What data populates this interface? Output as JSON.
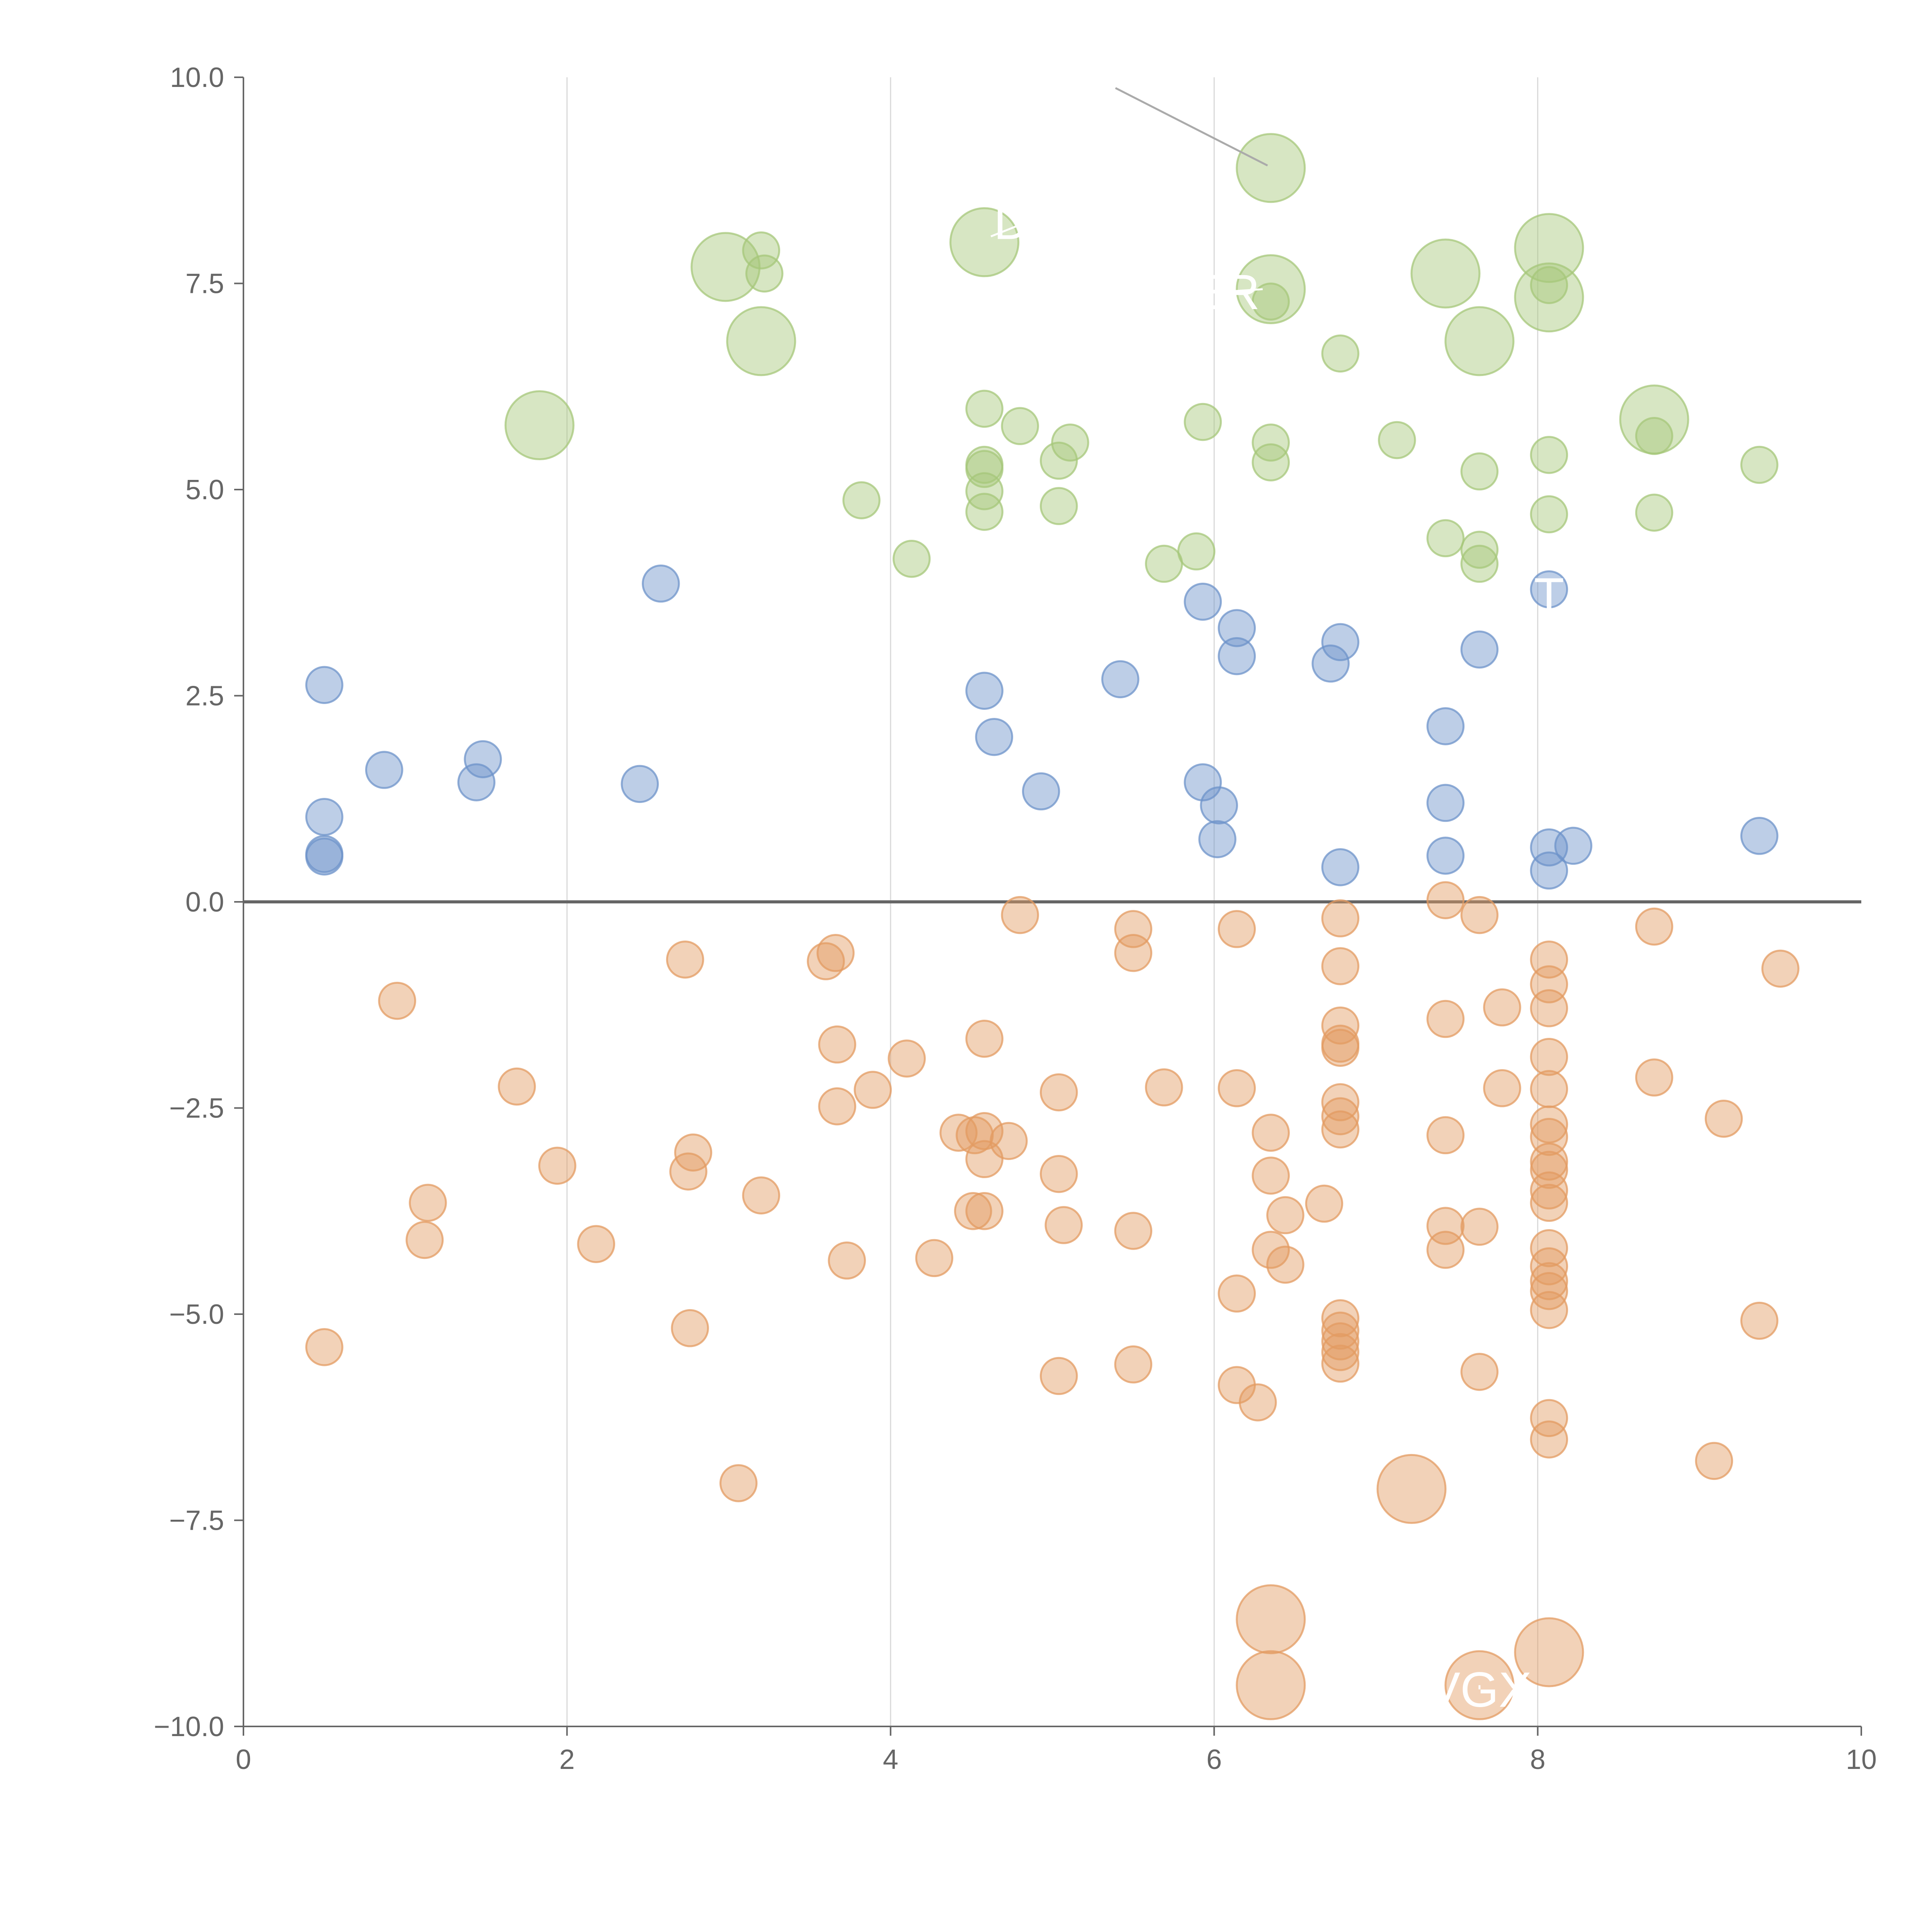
{
  "chart_data": {
    "type": "scatter",
    "title": "",
    "xlabel": "",
    "ylabel": "",
    "xlim": [
      0,
      10
    ],
    "ylim": [
      -10,
      10
    ],
    "x_ticks": [
      0,
      2,
      4,
      6,
      8,
      10
    ],
    "x_tick_labels": [
      "0",
      "2",
      "4",
      "6",
      "8",
      "10"
    ],
    "y_ticks": [
      10,
      7.5,
      5,
      2.5,
      0,
      -2.5,
      -5,
      -7.5,
      -10
    ],
    "y_tick_labels": [
      "10.0",
      "7.5",
      "5.0",
      "2.5",
      "0.0",
      "−2.5",
      "−5.0",
      "−7.5",
      "−10.0"
    ],
    "vertical_grid_at": [
      2,
      4,
      6,
      8
    ],
    "zero_line": 0,
    "colors": {
      "green": "#a6c77a",
      "blue": "#6d93c9",
      "orange": "#e39b62",
      "axis": "#666666",
      "grid": "#d9d9d9",
      "zero": "#666666",
      "leader": "#aaaaaa"
    },
    "series": [
      {
        "name": "green",
        "color": "#a6c77a",
        "points": [
          [
            6.35,
            8.9,
            1.6
          ],
          [
            4.58,
            8.0,
            1.6
          ],
          [
            2.98,
            7.7,
            1.6
          ],
          [
            3.2,
            7.9,
            0.85
          ],
          [
            3.22,
            7.62,
            0.85
          ],
          [
            3.2,
            6.8,
            1.6
          ],
          [
            1.83,
            5.78,
            1.6
          ],
          [
            6.35,
            7.43,
            1.6
          ],
          [
            6.35,
            7.28,
            0.85
          ],
          [
            7.43,
            7.62,
            1.6
          ],
          [
            8.07,
            7.93,
            1.6
          ],
          [
            8.07,
            7.48,
            0.85
          ],
          [
            8.07,
            7.33,
            1.6
          ],
          [
            7.64,
            6.8,
            1.6
          ],
          [
            6.78,
            6.65,
            0.85
          ],
          [
            8.72,
            5.85,
            1.6
          ],
          [
            8.72,
            5.65,
            0.85
          ],
          [
            9.37,
            5.3,
            0.85
          ],
          [
            4.58,
            5.98,
            0.85
          ],
          [
            4.8,
            5.77,
            0.85
          ],
          [
            5.93,
            5.82,
            0.85
          ],
          [
            6.35,
            5.57,
            0.85
          ],
          [
            6.35,
            5.33,
            0.85
          ],
          [
            7.13,
            5.6,
            0.85
          ],
          [
            7.64,
            5.22,
            0.85
          ],
          [
            8.07,
            5.42,
            0.85
          ],
          [
            8.07,
            4.7,
            0.85
          ],
          [
            8.72,
            4.72,
            0.85
          ],
          [
            4.58,
            5.3,
            0.85
          ],
          [
            4.58,
            5.25,
            0.85
          ],
          [
            4.58,
            4.98,
            0.85
          ],
          [
            4.58,
            4.73,
            0.85
          ],
          [
            5.04,
            5.35,
            0.85
          ],
          [
            5.11,
            5.57,
            0.85
          ],
          [
            5.04,
            4.8,
            0.85
          ],
          [
            3.82,
            4.87,
            0.85
          ],
          [
            4.13,
            4.16,
            0.85
          ],
          [
            5.89,
            4.25,
            0.85
          ],
          [
            5.69,
            4.1,
            0.85
          ],
          [
            7.43,
            4.41,
            0.85
          ],
          [
            7.64,
            4.27,
            0.85
          ],
          [
            7.64,
            4.1,
            0.85
          ]
        ]
      },
      {
        "name": "blue",
        "color": "#6d93c9",
        "points": [
          [
            0.5,
            2.63,
            0.85
          ],
          [
            0.5,
            1.03,
            0.85
          ],
          [
            0.5,
            0.58,
            0.85
          ],
          [
            0.5,
            0.55,
            0.85
          ],
          [
            0.87,
            1.6,
            0.85
          ],
          [
            1.44,
            1.45,
            0.85
          ],
          [
            1.48,
            1.73,
            0.85
          ],
          [
            2.45,
            1.43,
            0.85
          ],
          [
            2.58,
            3.86,
            0.85
          ],
          [
            4.58,
            2.56,
            0.85
          ],
          [
            4.64,
            2.0,
            0.85
          ],
          [
            4.93,
            1.34,
            0.85
          ],
          [
            5.42,
            2.7,
            0.85
          ],
          [
            5.93,
            3.64,
            0.85
          ],
          [
            5.93,
            1.45,
            0.85
          ],
          [
            6.03,
            1.17,
            0.85
          ],
          [
            6.02,
            0.76,
            0.85
          ],
          [
            6.14,
            3.32,
            0.85
          ],
          [
            6.14,
            2.98,
            0.85
          ],
          [
            6.72,
            2.89,
            0.85
          ],
          [
            6.78,
            3.15,
            0.85
          ],
          [
            6.78,
            0.42,
            0.85
          ],
          [
            7.43,
            2.13,
            0.85
          ],
          [
            7.43,
            1.2,
            0.85
          ],
          [
            7.43,
            0.56,
            0.85
          ],
          [
            7.64,
            3.06,
            0.85
          ],
          [
            8.07,
            3.79,
            0.85
          ],
          [
            8.07,
            0.66,
            0.85
          ],
          [
            8.07,
            0.38,
            0.85
          ],
          [
            8.22,
            0.68,
            0.85
          ],
          [
            9.37,
            0.8,
            0.85
          ]
        ]
      },
      {
        "name": "orange",
        "color": "#e39b62",
        "points": [
          [
            0.5,
            -5.4,
            0.85
          ],
          [
            0.95,
            -1.2,
            0.85
          ],
          [
            1.12,
            -4.1,
            0.85
          ],
          [
            1.14,
            -3.65,
            0.85
          ],
          [
            1.69,
            -2.24,
            0.85
          ],
          [
            1.94,
            -3.2,
            0.85
          ],
          [
            2.18,
            -4.15,
            0.85
          ],
          [
            2.73,
            -0.7,
            0.85
          ],
          [
            2.75,
            -3.27,
            0.85
          ],
          [
            2.78,
            -3.04,
            0.85
          ],
          [
            2.76,
            -5.17,
            0.85
          ],
          [
            3.06,
            -7.05,
            0.85
          ],
          [
            3.2,
            -3.56,
            0.85
          ],
          [
            3.6,
            -0.72,
            0.85
          ],
          [
            3.66,
            -0.62,
            0.85
          ],
          [
            3.67,
            -1.73,
            0.85
          ],
          [
            3.67,
            -2.48,
            0.85
          ],
          [
            3.89,
            -2.28,
            0.85
          ],
          [
            3.73,
            -4.35,
            0.85
          ],
          [
            4.1,
            -1.9,
            0.85
          ],
          [
            4.27,
            -4.32,
            0.85
          ],
          [
            4.42,
            -2.8,
            0.85
          ],
          [
            4.52,
            -2.83,
            0.85
          ],
          [
            4.58,
            -2.78,
            0.85
          ],
          [
            4.58,
            -3.12,
            0.85
          ],
          [
            4.73,
            -2.9,
            0.85
          ],
          [
            4.51,
            -3.75,
            0.85
          ],
          [
            4.58,
            -3.75,
            0.85
          ],
          [
            4.58,
            -1.66,
            0.85
          ],
          [
            4.8,
            -0.16,
            0.85
          ],
          [
            5.04,
            -2.31,
            0.85
          ],
          [
            5.04,
            -3.3,
            0.85
          ],
          [
            5.07,
            -3.92,
            0.85
          ],
          [
            5.04,
            -5.75,
            0.85
          ],
          [
            5.5,
            -0.33,
            0.85
          ],
          [
            5.5,
            -0.62,
            0.85
          ],
          [
            5.69,
            -2.25,
            0.85
          ],
          [
            5.5,
            -3.99,
            0.85
          ],
          [
            5.5,
            -5.61,
            0.85
          ],
          [
            6.14,
            -0.33,
            0.85
          ],
          [
            6.14,
            -2.26,
            0.85
          ],
          [
            6.35,
            -2.8,
            0.85
          ],
          [
            6.35,
            -3.32,
            0.85
          ],
          [
            6.44,
            -3.8,
            0.85
          ],
          [
            6.35,
            -4.22,
            0.85
          ],
          [
            6.44,
            -4.4,
            0.85
          ],
          [
            6.14,
            -4.75,
            0.85
          ],
          [
            6.14,
            -5.86,
            0.85
          ],
          [
            6.27,
            -6.07,
            0.85
          ],
          [
            6.68,
            -3.66,
            0.85
          ],
          [
            6.78,
            -0.2,
            0.85
          ],
          [
            6.78,
            -0.78,
            0.85
          ],
          [
            6.78,
            -1.5,
            0.85
          ],
          [
            6.78,
            -1.72,
            0.85
          ],
          [
            6.78,
            -1.77,
            0.85
          ],
          [
            6.78,
            -2.43,
            0.85
          ],
          [
            6.78,
            -2.6,
            0.85
          ],
          [
            6.78,
            -2.76,
            0.85
          ],
          [
            6.78,
            -5.05,
            0.85
          ],
          [
            6.78,
            -5.2,
            0.85
          ],
          [
            6.78,
            -5.33,
            0.85
          ],
          [
            6.78,
            -5.46,
            0.85
          ],
          [
            6.78,
            -5.6,
            0.85
          ],
          [
            7.43,
            0.02,
            0.85
          ],
          [
            7.43,
            -1.42,
            0.85
          ],
          [
            7.43,
            -2.83,
            0.85
          ],
          [
            7.43,
            -3.93,
            0.85
          ],
          [
            7.43,
            -4.22,
            0.85
          ],
          [
            7.64,
            -0.16,
            0.85
          ],
          [
            7.78,
            -1.28,
            0.85
          ],
          [
            7.78,
            -2.26,
            0.85
          ],
          [
            7.64,
            -3.94,
            0.85
          ],
          [
            7.64,
            -5.7,
            0.85
          ],
          [
            7.22,
            -7.12,
            1.6
          ],
          [
            8.07,
            -0.7,
            0.85
          ],
          [
            8.07,
            -1.0,
            0.85
          ],
          [
            8.07,
            -1.29,
            0.85
          ],
          [
            8.07,
            -1.88,
            0.85
          ],
          [
            8.07,
            -2.27,
            0.85
          ],
          [
            8.07,
            -2.7,
            0.85
          ],
          [
            8.07,
            -2.85,
            0.85
          ],
          [
            8.07,
            -3.15,
            0.85
          ],
          [
            8.07,
            -3.25,
            0.85
          ],
          [
            8.07,
            -3.5,
            0.85
          ],
          [
            8.07,
            -3.65,
            0.85
          ],
          [
            8.07,
            -4.2,
            0.85
          ],
          [
            8.07,
            -4.42,
            0.85
          ],
          [
            8.07,
            -4.6,
            0.85
          ],
          [
            8.07,
            -4.72,
            0.85
          ],
          [
            8.07,
            -4.95,
            0.85
          ],
          [
            8.07,
            -6.26,
            0.85
          ],
          [
            8.07,
            -6.52,
            0.85
          ],
          [
            8.72,
            -0.3,
            0.85
          ],
          [
            8.72,
            -2.13,
            0.85
          ],
          [
            9.15,
            -2.63,
            0.85
          ],
          [
            9.09,
            -6.78,
            0.85
          ],
          [
            9.37,
            -5.08,
            0.85
          ],
          [
            9.5,
            -0.81,
            0.85
          ],
          [
            6.35,
            -8.7,
            1.6
          ],
          [
            6.35,
            -9.5,
            1.6
          ],
          [
            7.64,
            -9.5,
            1.6
          ],
          [
            8.07,
            -9.1,
            1.6
          ]
        ]
      }
    ],
    "labeled_points": [
      {
        "text": "DA",
        "label_at": [
          4.85,
          8.25
        ],
        "point": [
          4.62,
          8.07
        ]
      },
      {
        "text": "ER",
        "label_at": [
          6.07,
          7.4
        ],
        "point": [
          6.3,
          7.43
        ]
      },
      {
        "text": "VGX",
        "label_at": [
          7.64,
          -9.55
        ],
        "point": [
          7.64,
          -9.5
        ]
      },
      {
        "text": "T",
        "label_at": [
          8.07,
          3.72
        ],
        "point": [
          8.07,
          3.79
        ]
      }
    ],
    "leader_line": {
      "from": [
        5.39,
        9.87
      ],
      "to": [
        6.33,
        8.93
      ]
    }
  }
}
